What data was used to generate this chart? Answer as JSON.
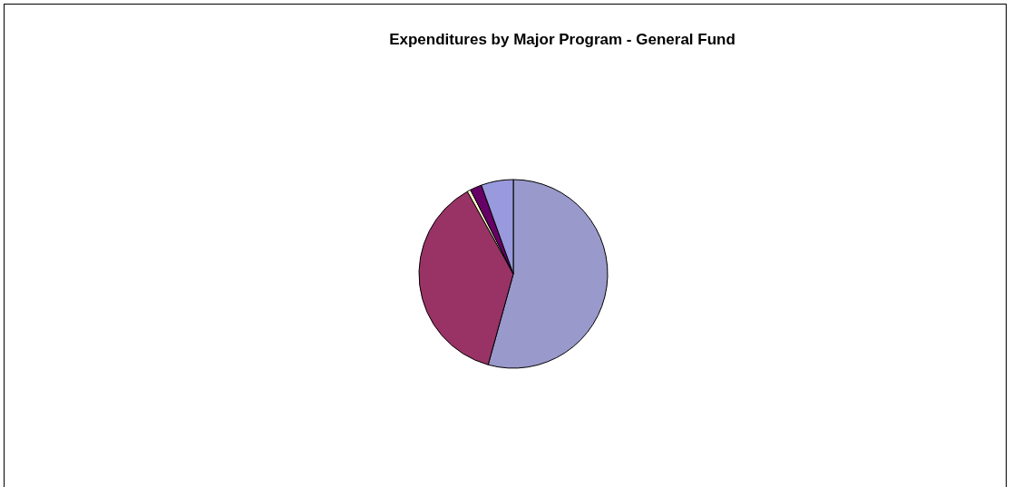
{
  "chart_data": {
    "type": "pie",
    "title": "Expenditures by Major Program - General Fund",
    "categories": [
      null,
      null,
      null,
      null,
      null
    ],
    "values": [
      54.3,
      37.6,
      0.6,
      2.0,
      5.5
    ],
    "colors": [
      "#9999cc",
      "#993366",
      "#ffffcc",
      "#660066",
      "#9999dd"
    ]
  }
}
